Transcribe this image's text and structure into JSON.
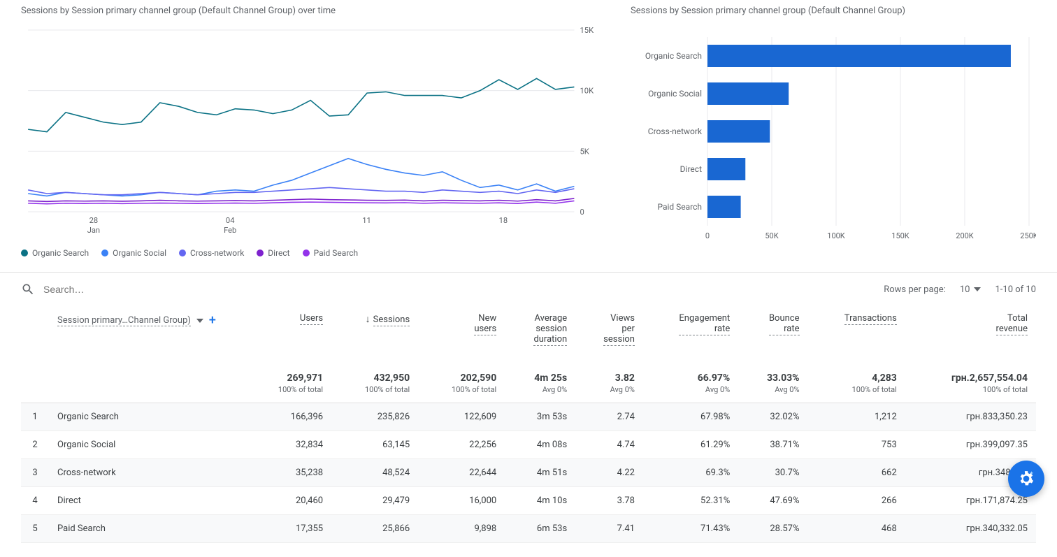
{
  "lineChart": {
    "title": "Sessions by Session primary channel group (Default Channel Group) over time",
    "y_max": 15000,
    "y_ticks": [
      0,
      5000,
      10000,
      15000
    ],
    "y_tick_labels": [
      "0",
      "5K",
      "10K",
      "15K"
    ],
    "x_ticks": [
      {
        "pos": 0.12,
        "top": "28",
        "bottom": "Jan"
      },
      {
        "pos": 0.37,
        "top": "04",
        "bottom": "Feb"
      },
      {
        "pos": 0.62,
        "top": "11",
        "bottom": ""
      },
      {
        "pos": 0.87,
        "top": "18",
        "bottom": ""
      }
    ],
    "grid_color": "#e8eaed",
    "axis_text_color": "#5f6368",
    "series": [
      {
        "name": "Organic Search",
        "color": "#0b7285",
        "values": [
          6800,
          6600,
          8200,
          7800,
          7400,
          7200,
          7400,
          9000,
          8700,
          8200,
          8000,
          8500,
          8400,
          8100,
          8400,
          9200,
          7900,
          8000,
          9800,
          9900,
          9600,
          9600,
          9600,
          9400,
          10000,
          10900,
          10100,
          11000,
          10100,
          10300
        ]
      },
      {
        "name": "Organic Social",
        "color": "#3b82f6",
        "values": [
          1500,
          1300,
          1600,
          1500,
          1400,
          1300,
          1400,
          1600,
          1500,
          1400,
          1700,
          1800,
          1700,
          2200,
          2600,
          3200,
          3800,
          4400,
          3900,
          3500,
          3200,
          3000,
          3300,
          2600,
          2000,
          2200,
          1800,
          2300,
          1700,
          2100
        ]
      },
      {
        "name": "Cross-network",
        "color": "#6366f1",
        "values": [
          1800,
          1500,
          1600,
          1500,
          1400,
          1400,
          1500,
          1600,
          1500,
          1400,
          1500,
          1600,
          1600,
          1700,
          1800,
          1900,
          2000,
          1900,
          1800,
          1700,
          1700,
          1600,
          1800,
          1700,
          1600,
          1700,
          1500,
          1800,
          1600,
          1900
        ]
      },
      {
        "name": "Direct",
        "color": "#7e22ce",
        "values": [
          900,
          850,
          900,
          880,
          900,
          870,
          900,
          950,
          900,
          880,
          900,
          920,
          900,
          950,
          1000,
          1050,
          1000,
          980,
          950,
          940,
          960,
          900,
          950,
          920,
          900,
          950,
          880,
          1000,
          900,
          1100
        ]
      },
      {
        "name": "Paid Search",
        "color": "#9333ea",
        "values": [
          700,
          650,
          700,
          680,
          700,
          670,
          700,
          720,
          700,
          680,
          700,
          720,
          700,
          740,
          780,
          800,
          780,
          760,
          740,
          730,
          750,
          700,
          740,
          720,
          700,
          740,
          680,
          800,
          700,
          900
        ]
      }
    ]
  },
  "barChart": {
    "title": "Sessions by Session primary channel group (Default Channel Group)",
    "x_max": 250000,
    "x_ticks": [
      0,
      50000,
      100000,
      150000,
      200000,
      250000
    ],
    "x_tick_labels": [
      "0",
      "50K",
      "100K",
      "150K",
      "200K",
      "250K"
    ],
    "bar_color": "#1967d2",
    "grid_color": "#e8eaed",
    "axis_text_color": "#5f6368",
    "bars": [
      {
        "label": "Organic Search",
        "value": 235826
      },
      {
        "label": "Organic Social",
        "value": 63145
      },
      {
        "label": "Cross-network",
        "value": 48524
      },
      {
        "label": "Direct",
        "value": 29479
      },
      {
        "label": "Paid Search",
        "value": 25866
      }
    ]
  },
  "search": {
    "placeholder": "Search…",
    "rows_per_page_label": "Rows per page:",
    "rows_per_page_value": "10",
    "page_range": "1-10 of 10"
  },
  "table": {
    "dimension_label": "Session primary…Channel Group)",
    "columns": [
      "Users",
      "Sessions",
      "New users",
      "Average session duration",
      "Views per session",
      "Engagement rate",
      "Bounce rate",
      "Transactions",
      "Total revenue"
    ],
    "sort_column_index": 1,
    "totals": {
      "values": [
        "269,971",
        "432,950",
        "202,590",
        "4m 25s",
        "3.82",
        "66.97%",
        "33.03%",
        "4,283",
        "грн.2,657,554.04"
      ],
      "sub": [
        "100% of total",
        "100% of total",
        "100% of total",
        "Avg 0%",
        "Avg 0%",
        "Avg 0%",
        "Avg 0%",
        "100% of total",
        "100% of total"
      ]
    },
    "rows": [
      {
        "idx": "1",
        "label": "Organic Search",
        "cells": [
          "166,396",
          "235,826",
          "122,609",
          "3m 53s",
          "2.74",
          "67.98%",
          "32.02%",
          "1,212",
          "грн.833,350.23"
        ],
        "highlight": true
      },
      {
        "idx": "2",
        "label": "Organic Social",
        "cells": [
          "32,834",
          "63,145",
          "22,256",
          "4m 08s",
          "4.74",
          "61.29%",
          "38.71%",
          "753",
          "грн.399,097.35"
        ],
        "highlight": false
      },
      {
        "idx": "3",
        "label": "Cross-network",
        "cells": [
          "35,238",
          "48,524",
          "22,644",
          "4m 51s",
          "4.22",
          "69.3%",
          "30.7%",
          "662",
          "грн.348,197"
        ],
        "highlight": true
      },
      {
        "idx": "4",
        "label": "Direct",
        "cells": [
          "20,460",
          "29,479",
          "16,000",
          "4m 10s",
          "3.78",
          "52.31%",
          "47.69%",
          "266",
          "грн.171,874.25"
        ],
        "highlight": false
      },
      {
        "idx": "5",
        "label": "Paid Search",
        "cells": [
          "17,355",
          "25,866",
          "9,898",
          "6m 53s",
          "7.41",
          "71.43%",
          "28.57%",
          "468",
          "грн.340,332.05"
        ],
        "highlight": true
      }
    ]
  }
}
